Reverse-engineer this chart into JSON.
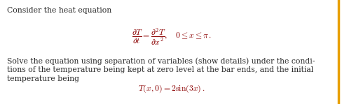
{
  "bg_color": "#ffffff",
  "border_color": "#e8a000",
  "text_color": "#2b2b2b",
  "math_color": "#8B0000",
  "figsize": [
    4.89,
    1.49
  ],
  "dpi": 100,
  "line1": "Consider the heat equation",
  "line3a": "Solve the equation using separation of variables (show details) under the condi-",
  "line3b": "tions of the temperature being kept at zero level at the bar ends, and the initial",
  "line3c": "temperature being",
  "font_size_text": 7.8,
  "font_size_eq": 8.5
}
